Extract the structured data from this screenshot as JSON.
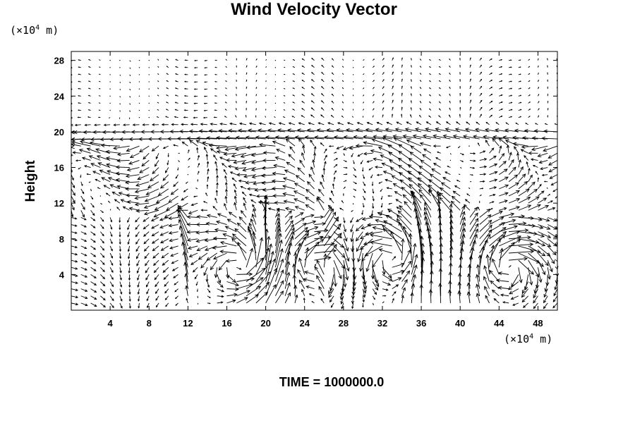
{
  "chart_data": {
    "type": "vector-field",
    "title": "Wind Velocity Vector",
    "ylabel": "Height",
    "xlabel": "",
    "y_unit": {
      "prefix": "(×10",
      "exponent": "4",
      "suffix": " m)"
    },
    "x_unit": {
      "prefix": "(×10",
      "exponent": "4",
      "suffix": " m)"
    },
    "footer": "TIME = 1000000.0",
    "xlim": [
      0,
      50
    ],
    "ylim": [
      0,
      29
    ],
    "xticks": [
      4,
      8,
      12,
      16,
      20,
      24,
      28,
      32,
      36,
      40,
      44,
      48
    ],
    "yticks": [
      4,
      8,
      12,
      16,
      20,
      24,
      28
    ],
    "grid": false,
    "features": {
      "jet_height": 19.5,
      "vortices": [
        {
          "x": 17.5,
          "y": 5,
          "sense": "ccw"
        },
        {
          "x": 25,
          "y": 5,
          "sense": "cw"
        },
        {
          "x": 33,
          "y": 6,
          "sense": "ccw"
        },
        {
          "x": 45,
          "y": 5,
          "sense": "cw"
        }
      ],
      "updrafts": [
        12,
        20,
        26,
        36,
        38
      ]
    }
  }
}
